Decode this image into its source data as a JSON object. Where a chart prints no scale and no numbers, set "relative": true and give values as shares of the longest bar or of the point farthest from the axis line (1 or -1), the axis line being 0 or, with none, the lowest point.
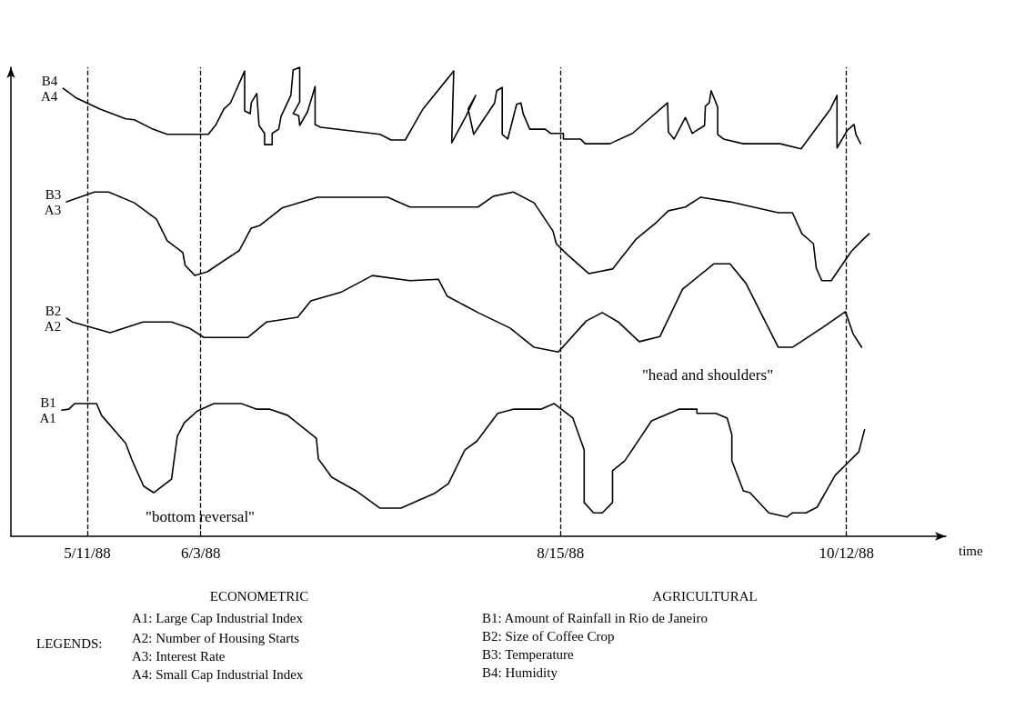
{
  "chart_data": {
    "type": "line",
    "relative": true,
    "xlabel": "time",
    "xlim": [
      "1988-04-25T12:00",
      "1988-11-01T04:00"
    ],
    "xticks": [
      {
        "value": "1988-05-11",
        "label": "5/11/88"
      },
      {
        "value": "1988-06-03",
        "label": "6/3/88"
      },
      {
        "value": "1988-08-15",
        "label": "8/15/88"
      },
      {
        "value": "1988-10-12",
        "label": "10/12/88"
      }
    ],
    "marker": "none",
    "line_style": "solid",
    "series": [
      {
        "name": "B4\nA4",
        "color": "#000000",
        "x": [
          "1988-05-06T02:00",
          "1988-05-08T20:00",
          "1988-05-13T14:00",
          "1988-05-18T19:00",
          "1988-05-20T13:00",
          "1988-05-24T07:00",
          "1988-05-27T05:00",
          "1988-06-04T13:00",
          "1988-06-06T03:00",
          "1988-06-07T17:00",
          "1988-06-09T01:00",
          "1988-06-11T22:00",
          "1988-06-11T22:00",
          "1988-06-13T01:00",
          "1988-06-13T06:00",
          "1988-06-14T09:00",
          "1988-06-14T20:00",
          "1988-06-15T23:00",
          "1988-06-15T23:00",
          "1988-06-17T12:00",
          "1988-06-17T12:00",
          "1988-06-18T20:00",
          "1988-06-19T07:00",
          "1988-06-21T07:00",
          "1988-06-21T18:00",
          "1988-06-23T02:00",
          "1988-06-23T02:00",
          "1988-06-21T18:00",
          "1988-06-22T21:00",
          "1988-06-23T02:00",
          "1988-06-24T16:00",
          "1988-06-26T05:00",
          "1988-06-26T05:00",
          "1988-06-27T08:00",
          "1988-07-09T09:00",
          "1988-07-11T15:00",
          "1988-07-14T12:00",
          "1988-07-18T02:00",
          "1988-07-24T08:00",
          "1988-07-23T22:00",
          "1988-07-26T19:00",
          "1988-07-28T19:00",
          "1988-07-27T06:00",
          "1988-07-28T09:00",
          "1988-08-01T15:00",
          "1988-08-02T01:00",
          "1988-08-03T04:00",
          "1988-08-03T04:00",
          "1988-08-04T07:00",
          "1988-08-06T02:00",
          "1988-08-06T23:00",
          "1988-08-07T10:00",
          "1988-08-08T18:00",
          "1988-08-11T21:00",
          "1988-08-13T00:00",
          "1988-08-15T14:00",
          "1988-08-15T14:00",
          "1988-08-19T01:00",
          "1988-08-20T00:00",
          "1988-08-25T00:00",
          "1988-08-29T14:00",
          "1988-09-05T17:00",
          "1988-09-05T21:00",
          "1988-09-07T01:00",
          "1988-09-09T08:00",
          "1988-09-10T17:00",
          "1988-09-13T05:00",
          "1988-09-13T09:00",
          "1988-09-14T04:00",
          "1988-09-14T13:00",
          "1988-09-15T21:00",
          "1988-09-15T21:00",
          "1988-09-17T01:00",
          "1988-09-21T02:00",
          "1988-09-28T13:00",
          "1988-10-02T19:00",
          "1988-10-08T18:00",
          "1988-10-10T02:00",
          "1988-10-10T02:00",
          "1988-10-12T05:00",
          "1988-10-13T13:00",
          "1988-10-13T22:00",
          "1988-10-14T21:00"
        ],
        "values": [
          0.955,
          0.934,
          0.911,
          0.89,
          0.888,
          0.868,
          0.857,
          0.857,
          0.878,
          0.911,
          0.924,
          0.992,
          0.907,
          0.901,
          0.924,
          0.944,
          0.876,
          0.859,
          0.835,
          0.835,
          0.859,
          0.868,
          0.895,
          0.94,
          0.994,
          1,
          0.926,
          0.901,
          0.897,
          0.876,
          0.905,
          0.959,
          0.878,
          0.872,
          0.857,
          0.845,
          0.845,
          0.911,
          0.992,
          0.839,
          0.895,
          0.94,
          0.911,
          0.857,
          0.924,
          0.95,
          0.957,
          0.857,
          0.847,
          0.921,
          0.924,
          0.901,
          0.868,
          0.868,
          0.859,
          0.859,
          0.847,
          0.847,
          0.837,
          0.837,
          0.859,
          0.924,
          0.862,
          0.847,
          0.893,
          0.859,
          0.876,
          0.917,
          0.924,
          0.95,
          0.915,
          0.857,
          0.847,
          0.837,
          0.837,
          0.826,
          0.911,
          0.94,
          0.828,
          0.866,
          0.878,
          0.857,
          0.837
        ]
      },
      {
        "name": "B3\nA3",
        "color": "#000000",
        "x": [
          "1988-05-06T19:00",
          "1988-05-12T11:00",
          "1988-05-15T08:00",
          "1988-05-20T13:00",
          "1988-05-25T01:00",
          "1988-05-27T05:00",
          "1988-05-30T09:00",
          "1988-05-30T20:00",
          "1988-06-01T20:00",
          "1988-06-04T08:00",
          "1988-06-10T19:00",
          "1988-06-13T06:00",
          "1988-06-15T01:00",
          "1988-06-19T12:00",
          "1988-06-26T16:00",
          "1988-07-10T23:00",
          "1988-07-15T10:00",
          "1988-07-29T06:00",
          "1988-08-01T09:00",
          "1988-08-05T10:00",
          "1988-08-09T15:00",
          "1988-08-13T11:00",
          "1988-08-14T03:00",
          "1988-08-16T08:00",
          "1988-08-20T18:00",
          "1988-08-25T13:00",
          "1988-08-30T09:00",
          "1988-09-03T10:00",
          "1988-09-05T21:00",
          "1988-09-09T08:00",
          "1988-09-12T10:00",
          "1988-09-18T09:00",
          "1988-09-28T04:00",
          "1988-10-01T01:00",
          "1988-10-02T23:00",
          "1988-10-05T07:00",
          "1988-10-05T21:00",
          "1988-10-07T00:00",
          "1988-10-08T22:00",
          "1988-10-12T23:00",
          "1988-10-15T11:00",
          "1988-10-16T15:00"
        ],
        "values": [
          0.713,
          0.734,
          0.734,
          0.711,
          0.676,
          0.63,
          0.605,
          0.578,
          0.556,
          0.564,
          0.609,
          0.657,
          0.663,
          0.7,
          0.723,
          0.723,
          0.702,
          0.702,
          0.725,
          0.734,
          0.711,
          0.651,
          0.624,
          0.601,
          0.56,
          0.57,
          0.634,
          0.669,
          0.694,
          0.702,
          0.723,
          0.713,
          0.69,
          0.69,
          0.645,
          0.624,
          0.572,
          0.545,
          0.545,
          0.607,
          0.634,
          0.645
        ]
      },
      {
        "name": "B2\nA2",
        "color": "#000000",
        "x": [
          "1988-05-06T19:00",
          "1988-05-07T23:00",
          "1988-05-15T15:00",
          "1988-05-22T07:00",
          "1988-05-28T02:00",
          "1988-05-31T16:00",
          "1988-06-03T16:00",
          "1988-06-12T14:00",
          "1988-06-16T09:00",
          "1988-06-22T16:00",
          "1988-06-25T08:00",
          "1988-07-01T14:00",
          "1988-07-07T20:00",
          "1988-07-15T10:00",
          "1988-07-21T05:00",
          "1988-07-23T00:00",
          "1988-07-29T06:00",
          "1988-08-04T18:00",
          "1988-08-09T15:00",
          "1988-08-14T13:00",
          "1988-08-20T05:00",
          "1988-08-23T11:00",
          "1988-08-26T17:00",
          "1988-08-30T23:00",
          "1988-09-04T04:00",
          "1988-09-08T18:00",
          "1988-09-15T03:00",
          "1988-09-18T09:00",
          "1988-09-21T15:00",
          "1988-09-28T04:00",
          "1988-10-01T01:00",
          "1988-10-07T00:00",
          "1988-10-11T19:00",
          "1988-10-13T08:00",
          "1988-10-15T02:00"
        ],
        "values": [
          0.465,
          0.457,
          0.434,
          0.457,
          0.457,
          0.444,
          0.424,
          0.424,
          0.457,
          0.467,
          0.502,
          0.521,
          0.556,
          0.545,
          0.548,
          0.512,
          0.477,
          0.444,
          0.403,
          0.393,
          0.459,
          0.477,
          0.457,
          0.415,
          0.426,
          0.527,
          0.581,
          0.581,
          0.539,
          0.403,
          0.403,
          0.444,
          0.479,
          0.432,
          0.403
        ]
      },
      {
        "name": "B1\nA1",
        "color": "#000000",
        "x": [
          "1988-05-05T19:00",
          "1988-05-07T06:00",
          "1988-05-08T10:00",
          "1988-05-12T21:00",
          "1988-05-13T21:00",
          "1988-05-18T19:00",
          "1988-05-20T03:00",
          "1988-05-22T10:00",
          "1988-05-24T11:00",
          "1988-05-28T02:00",
          "1988-05-29T06:00",
          "1988-05-30T16:00",
          "1988-06-02T07:00",
          "1988-06-05T16:00",
          "1988-06-11T06:00",
          "1988-06-14T09:00",
          "1988-06-17T01:00",
          "1988-06-20T15:00",
          "1988-06-26T11:00",
          "1988-06-26T21:00",
          "1988-06-29T14:00",
          "1988-07-04T12:00",
          "1988-07-09T09:00",
          "1988-07-13T15:00",
          "1988-07-20T08:00",
          "1988-07-23T06:00",
          "1988-07-26T14:00",
          "1988-07-29T01:00",
          "1988-08-02T06:00",
          "1988-08-05T10:00",
          "1988-08-11T00:00",
          "1988-08-13T16:00",
          "1988-08-17T12:00",
          "1988-08-19T19:00",
          "1988-08-19T19:00",
          "1988-08-21T17:00",
          "1988-08-23T11:00",
          "1988-08-25T13:00",
          "1988-08-25T13:00",
          "1988-08-28T01:00",
          "1988-09-02T11:00",
          "1988-09-08T00:00",
          "1988-09-11T16:00",
          "1988-09-11T16:00",
          "1988-09-15T12:00",
          "1988-09-17T19:00",
          "1988-09-18T18:00",
          "1988-09-18T18:00",
          "1988-09-21T02:00",
          "1988-09-22T10:00",
          "1988-09-26T06:00",
          "1988-09-29T22:00",
          "1988-10-01T01:00",
          "1988-10-03T18:00",
          "1988-10-06T01:00",
          "1988-10-09T17:00",
          "1988-10-14T12:00",
          "1988-10-15T16:00"
        ],
        "values": [
          0.269,
          0.271,
          0.283,
          0.283,
          0.258,
          0.198,
          0.161,
          0.107,
          0.093,
          0.122,
          0.213,
          0.242,
          0.267,
          0.283,
          0.283,
          0.271,
          0.271,
          0.258,
          0.209,
          0.165,
          0.126,
          0.097,
          0.06,
          0.06,
          0.091,
          0.112,
          0.184,
          0.203,
          0.262,
          0.271,
          0.271,
          0.283,
          0.252,
          0.184,
          0.072,
          0.05,
          0.05,
          0.072,
          0.14,
          0.161,
          0.246,
          0.271,
          0.271,
          0.262,
          0.262,
          0.252,
          0.217,
          0.161,
          0.097,
          0.093,
          0.05,
          0.041,
          0.05,
          0.05,
          0.062,
          0.13,
          0.18,
          0.227
        ]
      }
    ],
    "ref_lines": [
      {
        "axis": "x",
        "value": "1988-05-11",
        "line_style": "dashed"
      },
      {
        "axis": "x",
        "value": "1988-06-03",
        "line_style": "dashed"
      },
      {
        "axis": "x",
        "value": "1988-08-15",
        "line_style": "dashed"
      },
      {
        "axis": "x",
        "value": "1988-10-12",
        "line_style": "dashed"
      }
    ],
    "annotations": [
      "\"bottom reversal\"",
      "\"head and shoulders\"",
      "ECONOMETRIC",
      "AGRICULTURAL",
      "LEGENDS:",
      "A1: Large Cap Industrial Index",
      "A2: Number of Housing Starts",
      "A3: Interest Rate",
      "A4: Small Cap Industrial Index",
      "B1: Amount of Rainfall in Rio de Janeiro",
      "B2: Size of Coffee Crop",
      "B3: Temperature",
      "B4: Humidity"
    ]
  }
}
